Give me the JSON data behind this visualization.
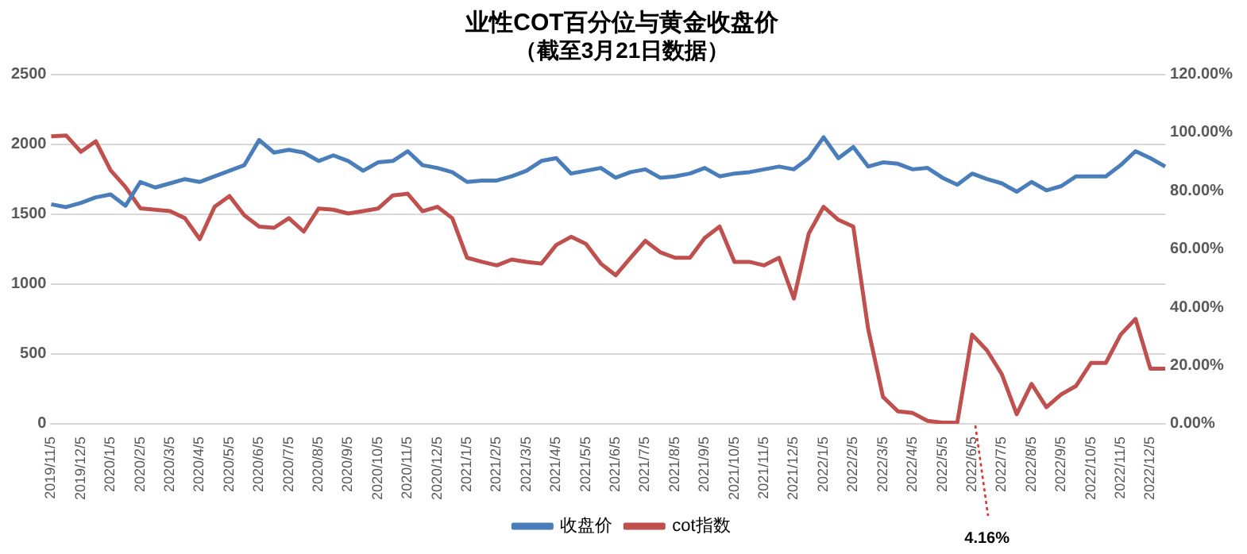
{
  "chart_data": {
    "type": "line",
    "title": "业性COT百分位与黄金收盘价",
    "subtitle": "（截至3月21日数据）",
    "categories": [
      "2019/11/5",
      null,
      "2019/12/5",
      null,
      "2020/1/5",
      null,
      "2020/2/5",
      null,
      "2020/3/5",
      null,
      "2020/4/5",
      null,
      "2020/5/5",
      null,
      "2020/6/5",
      null,
      "2020/7/5",
      null,
      "2020/8/5",
      null,
      "2020/9/5",
      null,
      "2020/10/5",
      null,
      "2020/11/5",
      null,
      "2020/12/5",
      null,
      "2021/1/5",
      null,
      "2021/2/5",
      null,
      "2021/3/5",
      null,
      "2021/4/5",
      null,
      "2021/5/5",
      null,
      "2021/6/5",
      null,
      "2021/7/5",
      null,
      "2021/8/5",
      null,
      "2021/9/5",
      null,
      "2021/10/5",
      null,
      "2021/11/5",
      null,
      "2021/12/5",
      null,
      "2022/1/5",
      null,
      "2022/2/5",
      null,
      "2022/3/5",
      null,
      "2022/4/5",
      null,
      "2022/5/5",
      null,
      "2022/6/5",
      null,
      "2022/7/5",
      null,
      "2022/8/5",
      null,
      "2022/9/5",
      null,
      "2022/10/5",
      null,
      "2022/11/5",
      null,
      "2022/12/5",
      null
    ],
    "series": [
      {
        "name": "收盘价",
        "color": "#4a7ebb",
        "values": [
          1570,
          1550,
          1580,
          1620,
          1640,
          1560,
          1730,
          1690,
          1720,
          1750,
          1730,
          1770,
          1810,
          1850,
          2030,
          1940,
          1960,
          1940,
          1880,
          1920,
          1880,
          1810,
          1870,
          1880,
          1950,
          1850,
          1830,
          1800,
          1730,
          1740,
          1740,
          1770,
          1810,
          1880,
          1900,
          1790,
          1810,
          1830,
          1760,
          1800,
          1820,
          1760,
          1770,
          1790,
          1830,
          1770,
          1790,
          1800,
          1820,
          1840,
          1820,
          1900,
          2050,
          1900,
          1980,
          1840,
          1870,
          1860,
          1820,
          1830,
          1760,
          1710,
          1790,
          1750,
          1720,
          1660,
          1730,
          1670,
          1700,
          1770,
          1770,
          1770,
          1850,
          1950,
          1900,
          1840
        ]
      },
      {
        "name": "cot指数",
        "color": "#c0504d",
        "axis": "y2",
        "values": [
          98.7,
          99,
          93.4,
          97,
          87,
          81.3,
          74,
          73.5,
          73,
          70.6,
          63.4,
          74.5,
          78.2,
          71.6,
          67.7,
          67.3,
          70.6,
          66,
          73.9,
          73.5,
          72.2,
          73,
          73.9,
          78.4,
          79,
          73,
          74.5,
          70.6,
          57,
          55.6,
          54.4,
          56.4,
          55.6,
          55,
          61.4,
          64.2,
          61.8,
          55,
          51,
          57,
          62.8,
          58.9,
          57,
          57,
          63.8,
          67.7,
          55.6,
          55.6,
          54.4,
          57,
          43,
          65.3,
          74.5,
          70,
          67.7,
          32.6,
          9.2,
          4.3,
          3.7,
          1,
          0.4,
          0.4,
          30.6,
          25.2,
          17,
          3.3,
          13.7,
          5.7,
          10.1,
          13,
          20.9,
          20.9,
          30.6,
          36,
          18.9,
          18.9
        ]
      }
    ],
    "ylim": [
      0,
      2500
    ],
    "yticks": [
      0,
      500,
      1000,
      1500,
      2000,
      2500
    ],
    "y2lim": [
      0,
      120
    ],
    "y2ticks": [
      {
        "value": 0,
        "label": "0.00%"
      },
      {
        "value": 20,
        "label": "20.00%"
      },
      {
        "value": 40,
        "label": "40.00%"
      },
      {
        "value": 60,
        "label": "60.00%"
      },
      {
        "value": 80,
        "label": "80.00%"
      },
      {
        "value": 100,
        "label": "100.00%"
      },
      {
        "value": 120,
        "label": "120.00%"
      }
    ],
    "annotations": [
      "4.16%"
    ],
    "grid": "y",
    "legend": "bottom",
    "marker": "none",
    "line_style": "solid"
  }
}
